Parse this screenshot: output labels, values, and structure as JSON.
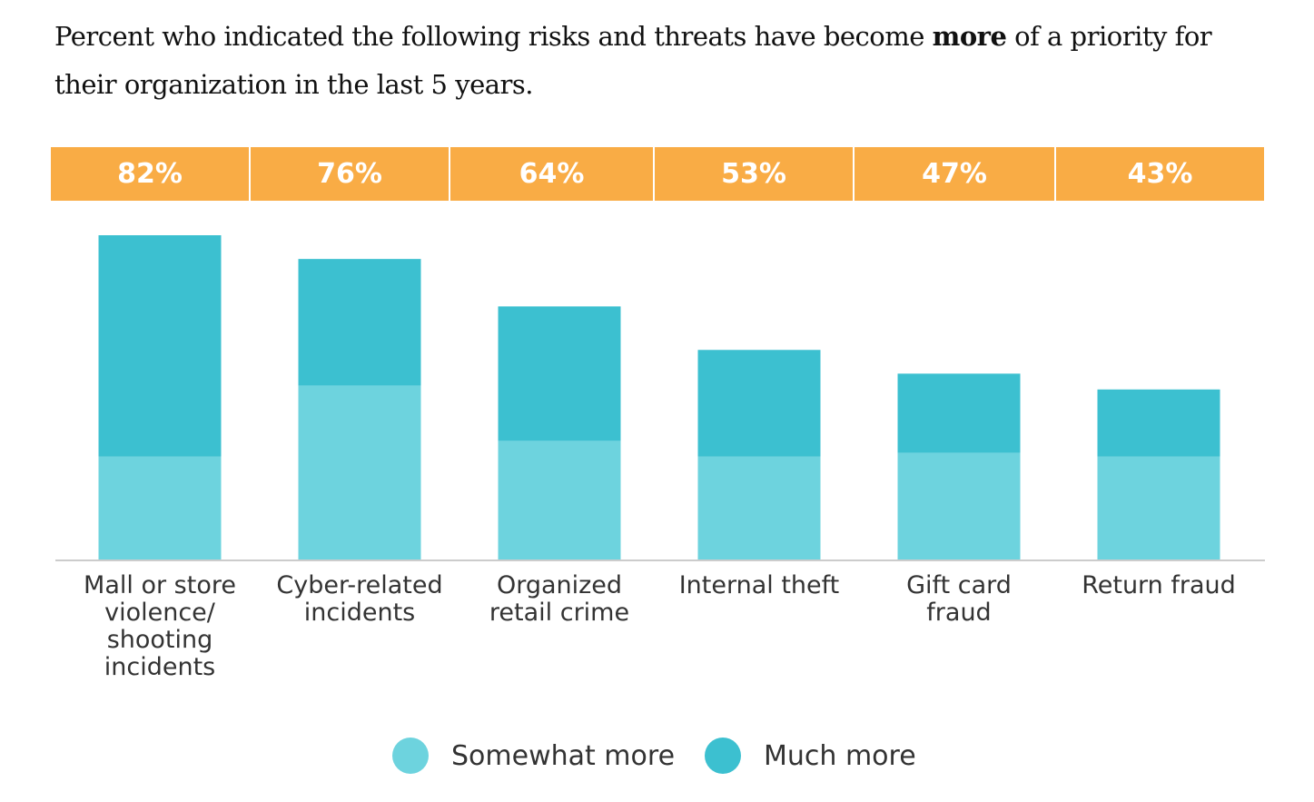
{
  "title": {
    "before": "Percent who indicated the following risks and threats have become ",
    "bold": "more",
    "after": " of a priority for their organization in the last 5 years."
  },
  "colors": {
    "header": "#F9AC45",
    "somewhat": "#6DD3DE",
    "much": "#3CC0D0",
    "axis": "#cccccc"
  },
  "chart_data": {
    "type": "bar",
    "stacked": true,
    "categories": [
      [
        "Mall or store",
        "violence/",
        "shooting",
        "incidents"
      ],
      [
        "Cyber-related",
        "incidents"
      ],
      [
        "Organized",
        "retail crime"
      ],
      [
        "Internal theft"
      ],
      [
        "Gift card",
        "fraud"
      ],
      [
        "Return fraud"
      ]
    ],
    "totals_labels": [
      "82%",
      "76%",
      "64%",
      "53%",
      "47%",
      "43%"
    ],
    "totals": [
      82,
      76,
      64,
      53,
      47,
      43
    ],
    "series": [
      {
        "name": "Somewhat more",
        "values": [
          26,
          44,
          30,
          26,
          27,
          26
        ]
      },
      {
        "name": "Much more",
        "values": [
          56,
          32,
          34,
          27,
          20,
          17
        ]
      }
    ],
    "ylim": [
      0,
      82
    ],
    "legend_position": "bottom",
    "grid": false
  }
}
